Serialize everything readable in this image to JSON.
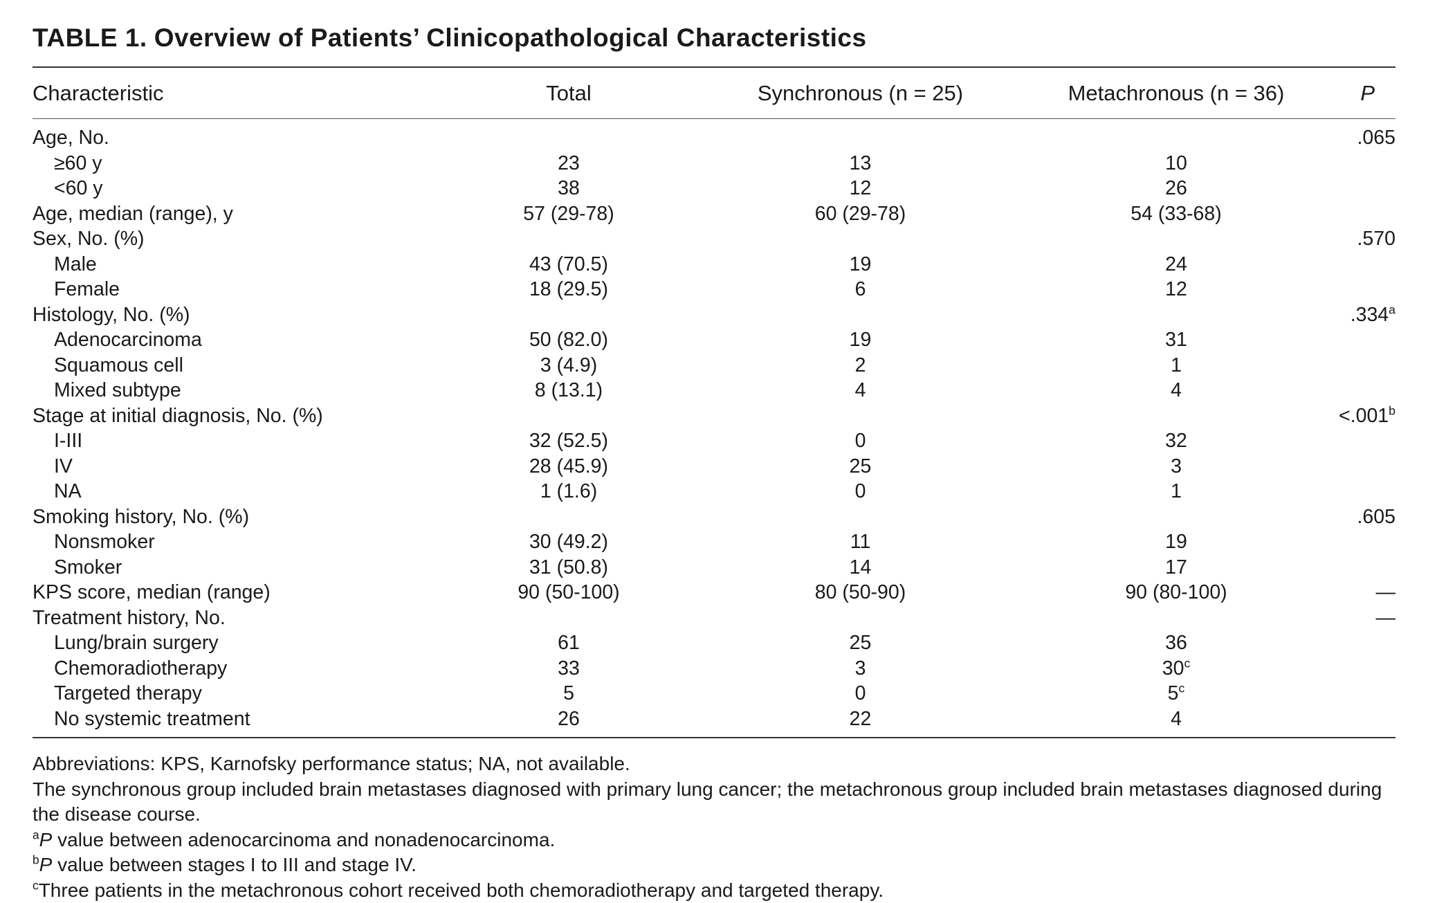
{
  "table": {
    "label": "TABLE 1.",
    "title": "Overview of Patients’ Clinicopathological Characteristics",
    "columns": {
      "characteristic": "Characteristic",
      "total": "Total",
      "synchronous": "Synchronous (n = 25)",
      "metachronous": "Metachronous (n = 36)",
      "p": "P"
    },
    "rows": [
      {
        "characteristic": "Age, No.",
        "total": "",
        "sync": "",
        "sync_sup": "",
        "meta": "",
        "meta_sup": "",
        "p": ".065",
        "p_sup": "",
        "indent": false
      },
      {
        "characteristic": "≥60 y",
        "total": "23",
        "sync": "13",
        "sync_sup": "",
        "meta": "10",
        "meta_sup": "",
        "p": "",
        "p_sup": "",
        "indent": true
      },
      {
        "characteristic": "<60 y",
        "total": "38",
        "sync": "12",
        "sync_sup": "",
        "meta": "26",
        "meta_sup": "",
        "p": "",
        "p_sup": "",
        "indent": true
      },
      {
        "characteristic": "Age, median (range), y",
        "total": "57 (29-78)",
        "sync": "60 (29-78)",
        "sync_sup": "",
        "meta": "54 (33-68)",
        "meta_sup": "",
        "p": "",
        "p_sup": "",
        "indent": false
      },
      {
        "characteristic": "Sex, No. (%)",
        "total": "",
        "sync": "",
        "sync_sup": "",
        "meta": "",
        "meta_sup": "",
        "p": ".570",
        "p_sup": "",
        "indent": false
      },
      {
        "characteristic": "Male",
        "total": "43 (70.5)",
        "sync": "19",
        "sync_sup": "",
        "meta": "24",
        "meta_sup": "",
        "p": "",
        "p_sup": "",
        "indent": true
      },
      {
        "characteristic": "Female",
        "total": "18 (29.5)",
        "sync": "6",
        "sync_sup": "",
        "meta": "12",
        "meta_sup": "",
        "p": "",
        "p_sup": "",
        "indent": true
      },
      {
        "characteristic": "Histology, No. (%)",
        "total": "",
        "sync": "",
        "sync_sup": "",
        "meta": "",
        "meta_sup": "",
        "p": ".334",
        "p_sup": "a",
        "indent": false
      },
      {
        "characteristic": "Adenocarcinoma",
        "total": "50 (82.0)",
        "sync": "19",
        "sync_sup": "",
        "meta": "31",
        "meta_sup": "",
        "p": "",
        "p_sup": "",
        "indent": true
      },
      {
        "characteristic": "Squamous cell",
        "total": "3 (4.9)",
        "sync": "2",
        "sync_sup": "",
        "meta": "1",
        "meta_sup": "",
        "p": "",
        "p_sup": "",
        "indent": true
      },
      {
        "characteristic": "Mixed subtype",
        "total": "8 (13.1)",
        "sync": "4",
        "sync_sup": "",
        "meta": "4",
        "meta_sup": "",
        "p": "",
        "p_sup": "",
        "indent": true
      },
      {
        "characteristic": "Stage at initial diagnosis, No. (%)",
        "total": "",
        "sync": "",
        "sync_sup": "",
        "meta": "",
        "meta_sup": "",
        "p": "<.001",
        "p_sup": "b",
        "indent": false
      },
      {
        "characteristic": "I-III",
        "total": "32 (52.5)",
        "sync": "0",
        "sync_sup": "",
        "meta": "32",
        "meta_sup": "",
        "p": "",
        "p_sup": "",
        "indent": true
      },
      {
        "characteristic": "IV",
        "total": "28 (45.9)",
        "sync": "25",
        "sync_sup": "",
        "meta": "3",
        "meta_sup": "",
        "p": "",
        "p_sup": "",
        "indent": true
      },
      {
        "characteristic": "NA",
        "total": "1 (1.6)",
        "sync": "0",
        "sync_sup": "",
        "meta": "1",
        "meta_sup": "",
        "p": "",
        "p_sup": "",
        "indent": true
      },
      {
        "characteristic": "Smoking history, No. (%)",
        "total": "",
        "sync": "",
        "sync_sup": "",
        "meta": "",
        "meta_sup": "",
        "p": ".605",
        "p_sup": "",
        "indent": false
      },
      {
        "characteristic": "Nonsmoker",
        "total": "30 (49.2)",
        "sync": "11",
        "sync_sup": "",
        "meta": "19",
        "meta_sup": "",
        "p": "",
        "p_sup": "",
        "indent": true
      },
      {
        "characteristic": "Smoker",
        "total": "31 (50.8)",
        "sync": "14",
        "sync_sup": "",
        "meta": "17",
        "meta_sup": "",
        "p": "",
        "p_sup": "",
        "indent": true
      },
      {
        "characteristic": "KPS score, median (range)",
        "total": "90 (50-100)",
        "sync": "80 (50-90)",
        "sync_sup": "",
        "meta": "90 (80-100)",
        "meta_sup": "",
        "p": "—",
        "p_sup": "",
        "indent": false
      },
      {
        "characteristic": "Treatment history, No.",
        "total": "",
        "sync": "",
        "sync_sup": "",
        "meta": "",
        "meta_sup": "",
        "p": "—",
        "p_sup": "",
        "indent": false
      },
      {
        "characteristic": "Lung/brain surgery",
        "total": "61",
        "sync": "25",
        "sync_sup": "",
        "meta": "36",
        "meta_sup": "",
        "p": "",
        "p_sup": "",
        "indent": true
      },
      {
        "characteristic": "Chemoradiotherapy",
        "total": "33",
        "sync": "3",
        "sync_sup": "",
        "meta": "30",
        "meta_sup": "c",
        "p": "",
        "p_sup": "",
        "indent": true
      },
      {
        "characteristic": "Targeted therapy",
        "total": "5",
        "sync": "0",
        "sync_sup": "",
        "meta": "5",
        "meta_sup": "c",
        "p": "",
        "p_sup": "",
        "indent": true
      },
      {
        "characteristic": "No systemic treatment",
        "total": "26",
        "sync": "22",
        "sync_sup": "",
        "meta": "4",
        "meta_sup": "",
        "p": "",
        "p_sup": "",
        "indent": true
      }
    ]
  },
  "footnotes": {
    "abbreviations": "Abbreviations: KPS, Karnofsky performance status; NA, not available.",
    "group_note": "The synchronous group included brain metastases diagnosed with primary lung cancer; the metachronous group included brain metastases diagnosed during the disease course.",
    "note_a": {
      "mark": "a",
      "p": "P",
      "text": " value between adenocarcinoma and nonadenocarcinoma."
    },
    "note_b": {
      "mark": "b",
      "p": "P",
      "text": " value between stages I to III and stage IV."
    },
    "note_c": {
      "mark": "c",
      "text": "Three patients in the metachronous cohort received both chemoradiotherapy and targeted therapy."
    }
  }
}
